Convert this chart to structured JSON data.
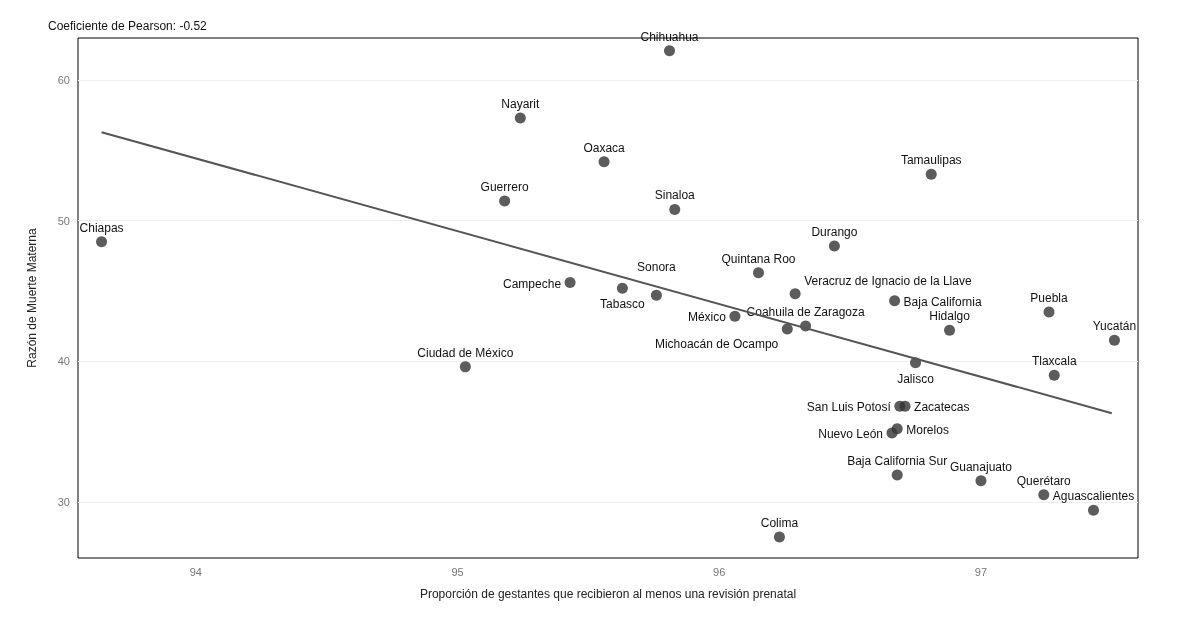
{
  "chart_data": {
    "type": "scatter",
    "xlabel": "Proporción de gestantes que recibieron al menos una revisión prenatal",
    "ylabel": "Razón de Muerte Materna",
    "xlim": [
      93.55,
      97.6
    ],
    "xticks": [
      94,
      95,
      96,
      97
    ],
    "ylim": [
      26,
      63
    ],
    "yticks": [
      30,
      40,
      50,
      60
    ],
    "grid": "y",
    "marker": "circle",
    "series": [
      {
        "color": "#333333",
        "x": [
          93.64,
          95.03,
          95.24,
          95.18,
          95.56,
          95.43,
          95.63,
          95.76,
          95.81,
          95.83,
          96.06,
          96.15,
          96.29,
          96.26,
          96.33,
          96.44,
          96.81,
          96.67,
          97.26,
          96.88,
          97.51,
          96.75,
          97.28,
          96.69,
          96.71,
          96.68,
          96.66,
          96.68,
          97.0,
          97.24,
          97.43,
          96.23
        ],
        "values": [
          48.5,
          39.6,
          57.3,
          51.4,
          54.2,
          45.6,
          45.2,
          44.7,
          62.1,
          50.8,
          43.2,
          46.3,
          44.8,
          42.3,
          42.5,
          48.2,
          53.3,
          44.3,
          43.5,
          42.2,
          41.5,
          39.9,
          39.0,
          36.8,
          36.8,
          35.2,
          34.9,
          31.9,
          31.5,
          30.5,
          29.4,
          27.5
        ]
      },
      {
        "type": "line",
        "color": "#555555",
        "line_style": "solid",
        "marker": "none",
        "x": [
          93.64,
          97.5
        ],
        "values": [
          56.3,
          36.3
        ]
      }
    ],
    "annotations": [
      "Coeficiente de Pearson: -0.52",
      {
        "text": "Chiapas",
        "x": 93.64,
        "y": 48.5
      },
      {
        "text": "Ciudad de México",
        "x": 95.03,
        "y": 39.6
      },
      {
        "text": "Nayarit",
        "x": 95.24,
        "y": 57.3
      },
      {
        "text": "Guerrero",
        "x": 95.18,
        "y": 51.4
      },
      {
        "text": "Oaxaca",
        "x": 95.56,
        "y": 54.2
      },
      {
        "text": "Campeche",
        "x": 95.43,
        "y": 45.6
      },
      {
        "text": "Tabasco",
        "x": 95.63,
        "y": 45.2
      },
      {
        "text": "Sonora",
        "x": 95.76,
        "y": 44.7
      },
      {
        "text": "Chihuahua",
        "x": 95.81,
        "y": 62.1
      },
      {
        "text": "Sinaloa",
        "x": 95.83,
        "y": 50.8
      },
      {
        "text": "México",
        "x": 96.06,
        "y": 43.2
      },
      {
        "text": "Quintana Roo",
        "x": 96.15,
        "y": 46.3
      },
      {
        "text": "Veracruz de Ignacio de la Llave",
        "x": 96.29,
        "y": 44.8
      },
      {
        "text": "Michoacán de Ocampo",
        "x": 96.26,
        "y": 42.3
      },
      {
        "text": "Coahuila de Zaragoza",
        "x": 96.33,
        "y": 42.5
      },
      {
        "text": "Durango",
        "x": 96.44,
        "y": 48.2
      },
      {
        "text": "Tamaulipas",
        "x": 96.81,
        "y": 53.3
      },
      {
        "text": "Baja California",
        "x": 96.67,
        "y": 44.3
      },
      {
        "text": "Puebla",
        "x": 97.26,
        "y": 43.5
      },
      {
        "text": "Hidalgo",
        "x": 96.88,
        "y": 42.2
      },
      {
        "text": "Yucatán",
        "x": 97.51,
        "y": 41.5
      },
      {
        "text": "Jalisco",
        "x": 96.75,
        "y": 39.9
      },
      {
        "text": "Tlaxcala",
        "x": 97.28,
        "y": 39.0
      },
      {
        "text": "San Luis Potosí",
        "x": 96.69,
        "y": 36.8
      },
      {
        "text": "Zacatecas",
        "x": 96.71,
        "y": 36.8
      },
      {
        "text": "Morelos",
        "x": 96.68,
        "y": 35.2
      },
      {
        "text": "Nuevo León",
        "x": 96.66,
        "y": 34.9
      },
      {
        "text": "Baja California Sur",
        "x": 96.68,
        "y": 31.9
      },
      {
        "text": "Guanajuato",
        "x": 97.0,
        "y": 31.5
      },
      {
        "text": "Querétaro",
        "x": 97.24,
        "y": 30.5
      },
      {
        "text": "Aguascalientes",
        "x": 97.43,
        "y": 29.4
      },
      {
        "text": "Colima",
        "x": 96.23,
        "y": 27.5
      }
    ]
  }
}
